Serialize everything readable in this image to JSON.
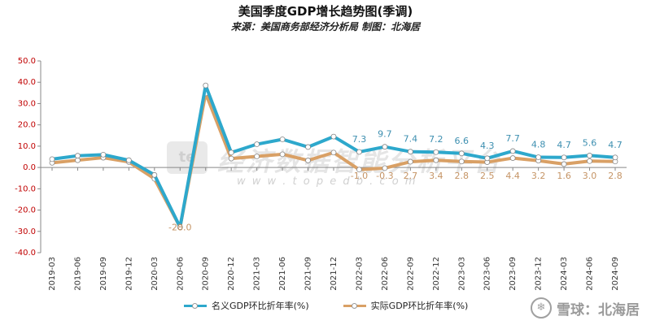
{
  "title": "美国季度GDP增长趋势图(季调)",
  "subtitle": "来源：美国商务部经济分析局  制图：北海居",
  "watermark": {
    "logo": "te",
    "text": "经济数据智能分析平台",
    "url": "w w w . t o p e d b . c o m"
  },
  "corner_brand": {
    "logo": "❄",
    "text": "雪球：北海居"
  },
  "colors": {
    "nominal": "#2da8cc",
    "real": "#d9a065"
  },
  "chart_data": {
    "type": "line",
    "title": "美国季度GDP增长趋势图(季调)",
    "xlabel": "",
    "ylabel": "",
    "ylim": [
      -40,
      50
    ],
    "yticks": [
      "50.0",
      "40.0",
      "30.0",
      "20.0",
      "10.0",
      "0.0",
      "-10.0",
      "-20.0",
      "-30.0",
      "-40.0"
    ],
    "grid": false,
    "legend": "bottom-center",
    "categories": [
      "2019-03",
      "2019-06",
      "2019-09",
      "2019-12",
      "2020-03",
      "2020-06",
      "2020-09",
      "2020-12",
      "2021-03",
      "2021-06",
      "2021-09",
      "2021-12",
      "2022-03",
      "2022-06",
      "2022-09",
      "2022-12",
      "2023-03",
      "2023-06",
      "2023-09",
      "2023-12",
      "2024-03",
      "2024-06",
      "2024-09"
    ],
    "series": [
      {
        "name": "名义GDP环比折年率(%)",
        "values": [
          3.9,
          5.5,
          6.0,
          3.4,
          -3.5,
          -28.0,
          38.5,
          7.0,
          10.9,
          13.2,
          9.6,
          14.5,
          7.3,
          9.7,
          7.4,
          7.2,
          6.6,
          4.3,
          7.7,
          4.8,
          4.7,
          5.6,
          4.7
        ],
        "labels": [
          "",
          "",
          "",
          "",
          "",
          "",
          "",
          "",
          "",
          "",
          "",
          "",
          "7.3",
          "9.7",
          "7.4",
          "7.2",
          "6.6",
          "4.3",
          "7.7",
          "4.8",
          "4.7",
          "5.6",
          "4.7"
        ]
      },
      {
        "name": "实际GDP环比折年率(%)",
        "values": [
          2.2,
          3.4,
          4.6,
          2.6,
          -5.3,
          -28.0,
          34.8,
          4.2,
          5.2,
          6.2,
          3.3,
          7.0,
          -1.0,
          -0.3,
          2.7,
          3.4,
          2.8,
          2.5,
          4.4,
          3.2,
          1.6,
          3.0,
          2.8
        ],
        "labels": [
          "",
          "",
          "",
          "",
          "",
          "-28.0",
          "",
          "",
          "",
          "",
          "",
          "",
          "-1.0",
          "-0.3",
          "2.7",
          "3.4",
          "2.8",
          "2.5",
          "4.4",
          "3.2",
          "1.6",
          "3.0",
          "2.8"
        ]
      }
    ]
  }
}
